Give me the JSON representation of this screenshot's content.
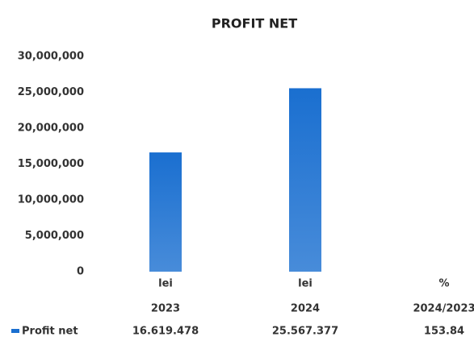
{
  "chart_data": {
    "type": "bar",
    "title": "PROFIT NET",
    "categories": [
      [
        "lei",
        "2023"
      ],
      [
        "lei",
        "2024"
      ],
      [
        "%",
        "2024/2023"
      ]
    ],
    "series": [
      {
        "name": "Profit net",
        "color": "#1a6fd0",
        "values": [
          16619478,
          25567377,
          153.84
        ],
        "value_labels": [
          "16.619.478",
          "25.567.377",
          "153.84"
        ]
      }
    ],
    "ylim": [
      0,
      30000000
    ],
    "yticks": [
      0,
      {
        "value": 5000000,
        "label": "5,000,000"
      },
      {
        "value": 10000000,
        "label": "10,000,000"
      },
      {
        "value": 15000000,
        "label": "15,000,000"
      },
      {
        "value": 20000000,
        "label": "20,000,000"
      },
      {
        "value": 25000000,
        "label": "25,000,000"
      },
      {
        "value": 30000000,
        "label": "30,000,000"
      }
    ],
    "grid": false,
    "legend": "bottom-left"
  }
}
